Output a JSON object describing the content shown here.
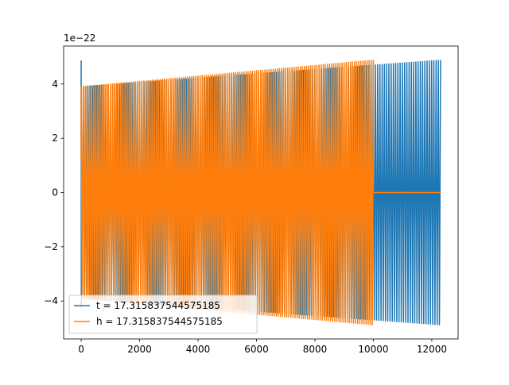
{
  "chart_data": {
    "type": "line",
    "title": "",
    "xlabel": "",
    "ylabel": "",
    "xlim": [
      -600,
      12900
    ],
    "ylim": [
      -5.4,
      5.4
    ],
    "x_ticks": [
      0,
      2000,
      4000,
      6000,
      8000,
      10000,
      12000
    ],
    "x_tick_labels": [
      "0",
      "2000",
      "4000",
      "6000",
      "8000",
      "10000",
      "12000"
    ],
    "y_ticks": [
      -4,
      -2,
      0,
      2,
      4
    ],
    "y_tick_labels": [
      "−4",
      "−2",
      "0",
      "2",
      "4"
    ],
    "y_offset_label": "1e−22",
    "grid": false,
    "legend_placement": "lower-left",
    "series": [
      {
        "name": "t = 17.315837544575185",
        "color": "#1f77b4",
        "x_start": 0,
        "x_end": 12300,
        "cycles": 160,
        "amplitude_start": 3.9,
        "amplitude_end": 4.88,
        "initial_spike": 4.85
      },
      {
        "name": "h = 17.315837544575185",
        "color": "#ff7f0e",
        "x_start": 0,
        "x_end": 10000,
        "cycles": 140,
        "amplitude_start": 3.9,
        "amplitude_end": 4.88,
        "zero_until": 12300
      }
    ]
  }
}
